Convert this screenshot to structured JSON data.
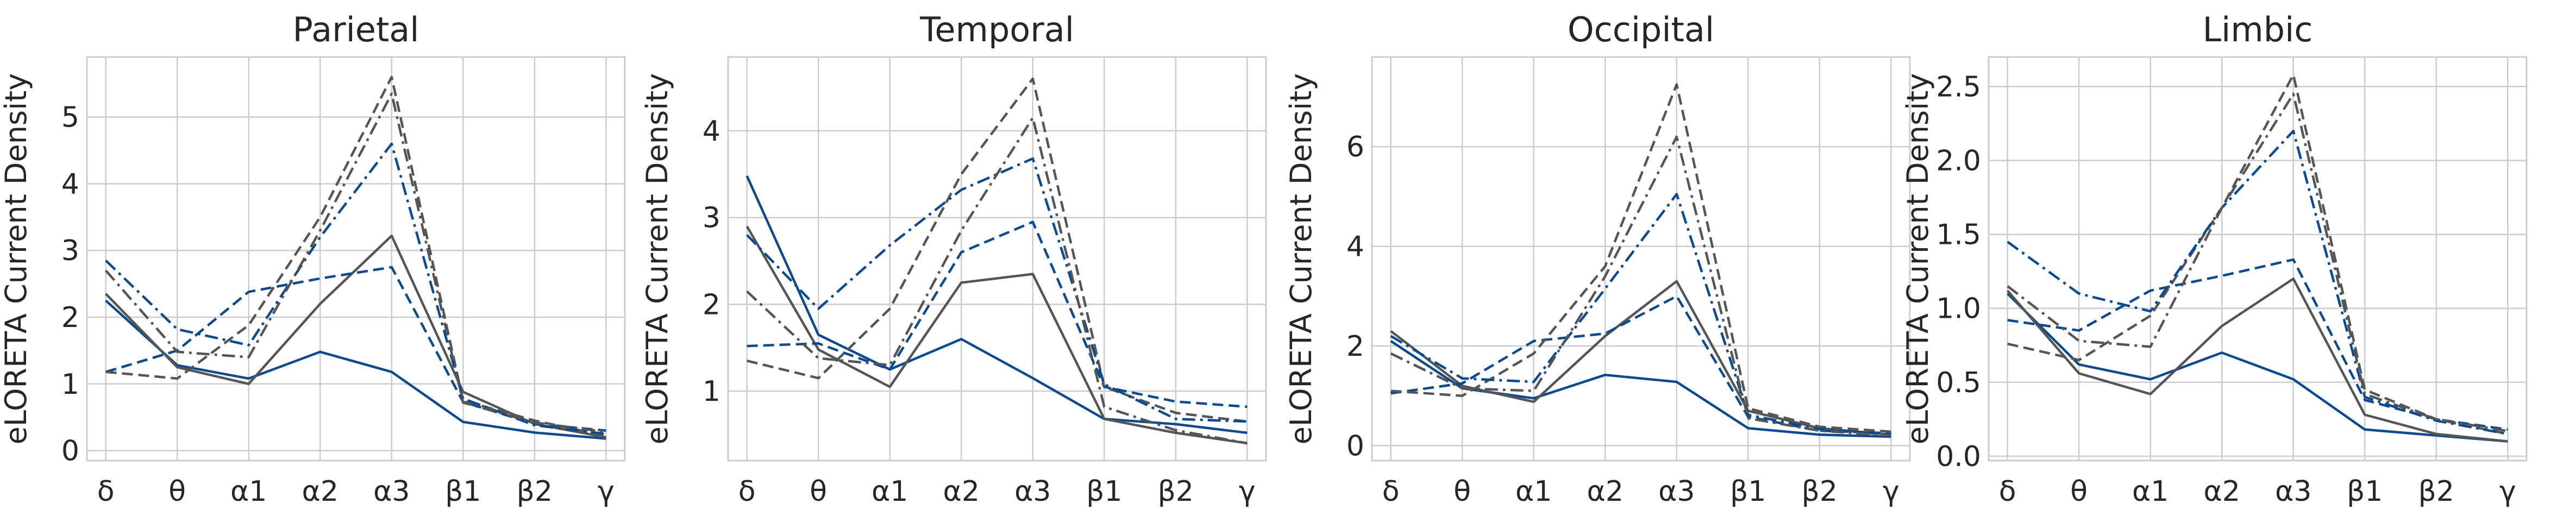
{
  "colors": {
    "blue": "#0b4a8f",
    "gray": "#555555",
    "grid": "#cccccc",
    "text": "#262626"
  },
  "chart_data": [
    {
      "type": "line",
      "title": "Parietal",
      "ylabel": "eLORETA Current Density",
      "categories": [
        "δ",
        "θ",
        "α1",
        "α2",
        "α3",
        "β1",
        "β2",
        "γ"
      ],
      "ylim": [
        -0.15,
        5.9
      ],
      "yticks": [
        0,
        1,
        2,
        3,
        4,
        5
      ],
      "grid": true,
      "series": [
        {
          "color": "blue",
          "dash": "solid",
          "values": [
            2.25,
            1.28,
            1.08,
            1.48,
            1.18,
            0.43,
            0.27,
            0.18
          ]
        },
        {
          "color": "gray",
          "dash": "solid",
          "values": [
            2.35,
            1.25,
            1.0,
            2.2,
            3.22,
            0.88,
            0.4,
            0.2
          ]
        },
        {
          "color": "blue",
          "dash": "dashed",
          "values": [
            1.18,
            1.5,
            2.38,
            2.58,
            2.75,
            0.73,
            0.4,
            0.3
          ]
        },
        {
          "color": "gray",
          "dash": "dashed",
          "values": [
            1.18,
            1.08,
            1.88,
            3.5,
            5.6,
            0.75,
            0.45,
            0.22
          ]
        },
        {
          "color": "blue",
          "dash": "dashdot",
          "values": [
            2.85,
            1.82,
            1.58,
            3.2,
            4.6,
            0.78,
            0.38,
            0.25
          ]
        },
        {
          "color": "gray",
          "dash": "dashdot",
          "values": [
            2.7,
            1.48,
            1.4,
            3.3,
            5.35,
            0.72,
            0.42,
            0.28
          ]
        }
      ]
    },
    {
      "type": "line",
      "title": "Temporal",
      "ylabel": "eLORETA Current Density",
      "categories": [
        "δ",
        "θ",
        "α1",
        "α2",
        "α3",
        "β1",
        "β2",
        "γ"
      ],
      "ylim": [
        0.2,
        4.85
      ],
      "yticks": [
        1,
        2,
        3,
        4
      ],
      "grid": true,
      "series": [
        {
          "color": "blue",
          "dash": "solid",
          "values": [
            3.48,
            1.65,
            1.25,
            1.6,
            1.15,
            0.68,
            0.62,
            0.52
          ]
        },
        {
          "color": "gray",
          "dash": "solid",
          "values": [
            2.9,
            1.48,
            1.05,
            2.25,
            2.35,
            0.68,
            0.52,
            0.4
          ]
        },
        {
          "color": "blue",
          "dash": "dashed",
          "values": [
            1.52,
            1.55,
            1.25,
            2.6,
            2.95,
            1.05,
            0.88,
            0.82
          ]
        },
        {
          "color": "gray",
          "dash": "dashed",
          "values": [
            1.35,
            1.15,
            1.95,
            3.5,
            4.6,
            1.05,
            0.75,
            0.65
          ]
        },
        {
          "color": "blue",
          "dash": "dashdot",
          "values": [
            2.8,
            1.95,
            2.68,
            3.32,
            3.68,
            1.08,
            0.68,
            0.65
          ]
        },
        {
          "color": "gray",
          "dash": "dashdot",
          "values": [
            2.15,
            1.38,
            1.3,
            2.85,
            4.15,
            0.82,
            0.55,
            0.4
          ]
        }
      ]
    },
    {
      "type": "line",
      "title": "Occipital",
      "ylabel": "eLORETA Current Density",
      "categories": [
        "δ",
        "θ",
        "α1",
        "α2",
        "α3",
        "β1",
        "β2",
        "γ"
      ],
      "ylim": [
        -0.3,
        7.8
      ],
      "yticks": [
        0,
        2,
        4,
        6
      ],
      "grid": true,
      "series": [
        {
          "color": "blue",
          "dash": "solid",
          "values": [
            2.1,
            1.15,
            0.95,
            1.42,
            1.28,
            0.35,
            0.22,
            0.18
          ]
        },
        {
          "color": "gray",
          "dash": "solid",
          "values": [
            2.3,
            1.2,
            0.88,
            2.2,
            3.3,
            0.7,
            0.35,
            0.22
          ]
        },
        {
          "color": "blue",
          "dash": "dashed",
          "values": [
            1.05,
            1.25,
            2.1,
            2.25,
            3.0,
            0.58,
            0.3,
            0.25
          ]
        },
        {
          "color": "gray",
          "dash": "dashed",
          "values": [
            1.1,
            1.0,
            1.85,
            3.6,
            7.25,
            0.75,
            0.38,
            0.28
          ]
        },
        {
          "color": "blue",
          "dash": "dashdot",
          "values": [
            2.2,
            1.35,
            1.28,
            3.15,
            5.05,
            0.62,
            0.33,
            0.22
          ]
        },
        {
          "color": "gray",
          "dash": "dashdot",
          "values": [
            1.85,
            1.15,
            1.1,
            3.4,
            6.2,
            0.55,
            0.3,
            0.2
          ]
        }
      ]
    },
    {
      "type": "line",
      "title": "Limbic",
      "ylabel": "eLORETA Current Density",
      "categories": [
        "δ",
        "θ",
        "α1",
        "α2",
        "α3",
        "β1",
        "β2",
        "γ"
      ],
      "ylim": [
        -0.03,
        2.7
      ],
      "yticks": [
        0.0,
        0.5,
        1.0,
        1.5,
        2.0,
        2.5
      ],
      "ytick_labels": [
        "0.0",
        "0.5",
        "1.0",
        "1.5",
        "2.0",
        "2.5"
      ],
      "grid": true,
      "series": [
        {
          "color": "blue",
          "dash": "solid",
          "values": [
            1.1,
            0.62,
            0.52,
            0.7,
            0.52,
            0.18,
            0.14,
            0.1
          ]
        },
        {
          "color": "gray",
          "dash": "solid",
          "values": [
            1.12,
            0.56,
            0.42,
            0.88,
            1.2,
            0.28,
            0.15,
            0.1
          ]
        },
        {
          "color": "blue",
          "dash": "dashed",
          "values": [
            0.92,
            0.85,
            1.12,
            1.22,
            1.33,
            0.38,
            0.25,
            0.18
          ]
        },
        {
          "color": "gray",
          "dash": "dashed",
          "values": [
            0.76,
            0.65,
            0.95,
            1.68,
            2.58,
            0.45,
            0.25,
            0.15
          ]
        },
        {
          "color": "blue",
          "dash": "dashdot",
          "values": [
            1.45,
            1.1,
            0.98,
            1.68,
            2.2,
            0.4,
            0.24,
            0.15
          ]
        },
        {
          "color": "gray",
          "dash": "dashdot",
          "values": [
            1.15,
            0.78,
            0.74,
            1.68,
            2.45,
            0.42,
            0.25,
            0.17
          ]
        }
      ]
    }
  ]
}
